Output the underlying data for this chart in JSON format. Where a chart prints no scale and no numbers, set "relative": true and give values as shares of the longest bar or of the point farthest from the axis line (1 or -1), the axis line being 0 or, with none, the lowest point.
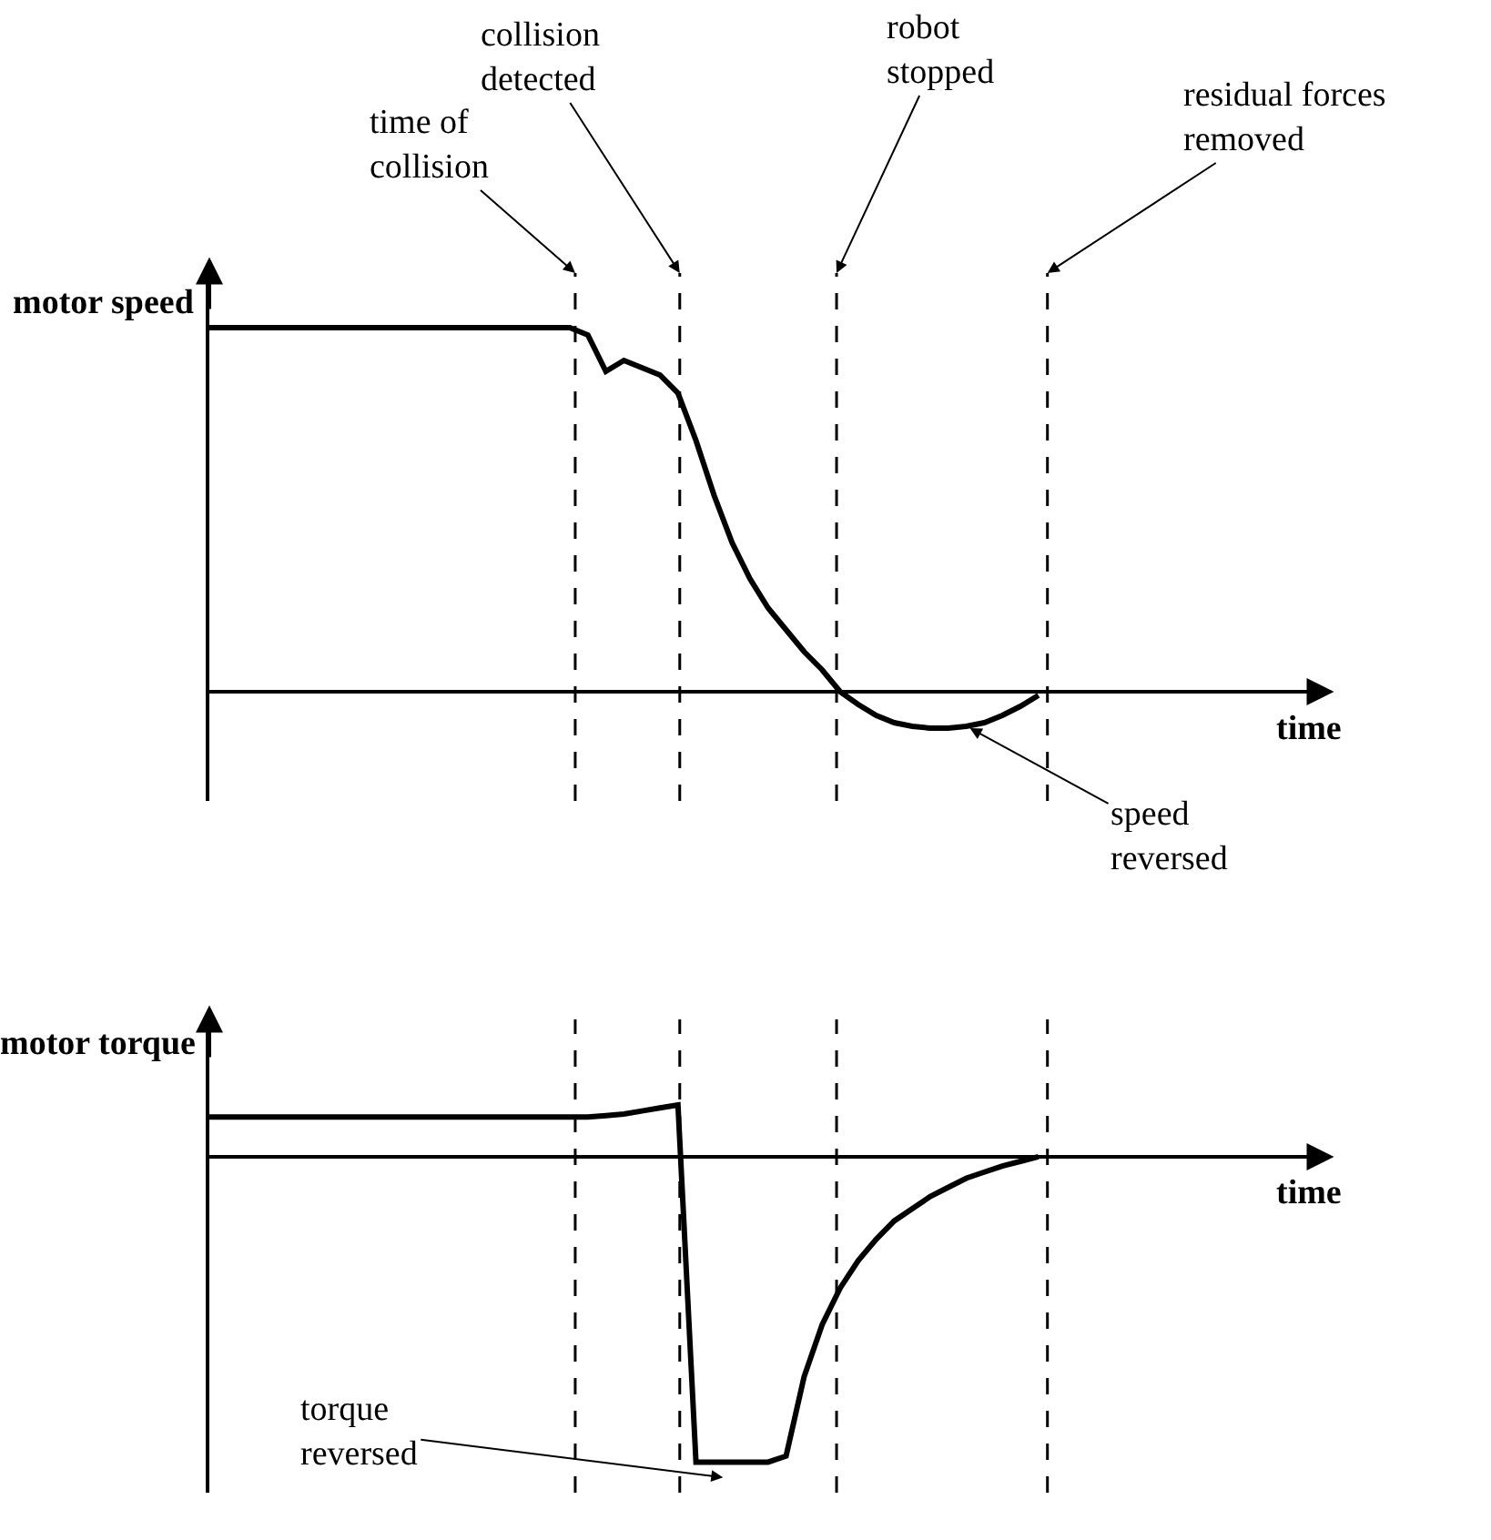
{
  "chart_data": [
    {
      "type": "line",
      "relative": true,
      "ylabel": "motor speed",
      "xlabel": "time",
      "line_style": "solid",
      "categories": [
        null,
        null,
        null,
        null,
        null,
        null,
        null,
        null,
        null,
        null,
        null,
        null,
        null,
        null,
        null,
        null,
        null,
        null,
        null,
        null,
        null,
        null,
        null,
        null,
        null,
        null,
        null,
        null,
        null,
        null,
        null,
        null,
        null,
        null,
        null,
        null,
        null,
        null,
        null,
        null,
        null,
        null,
        null,
        null,
        null,
        null,
        null,
        null,
        null,
        null,
        null,
        null,
        null,
        null,
        null,
        null,
        null,
        null,
        null,
        null,
        null
      ],
      "series": [
        {
          "color": "#000000",
          "values": [
            1,
            1,
            1,
            1,
            1,
            1,
            1,
            1,
            1,
            1,
            1,
            1,
            1,
            1,
            1,
            1,
            1,
            1,
            1,
            1,
            1,
            0.98,
            0.88,
            0.91,
            0.89,
            0.87,
            0.82,
            0.69,
            0.54,
            0.41,
            0.31,
            0.23,
            0.17,
            0.11,
            0.06,
            0,
            -0.035,
            -0.065,
            -0.085,
            -0.095,
            -0.1,
            -0.1,
            -0.095,
            -0.085,
            -0.065,
            -0.04,
            -0.01,
            null,
            null,
            null,
            null,
            null,
            null,
            null,
            null,
            null,
            null,
            null,
            null,
            null,
            null
          ]
        }
      ],
      "annotations": [
        "time of collision",
        "collision detected",
        "robot stopped",
        "residual forces removed",
        "speed reversed"
      ]
    },
    {
      "type": "line",
      "relative": true,
      "ylabel": "motor torque",
      "xlabel": "time",
      "line_style": "solid",
      "categories": [
        null,
        null,
        null,
        null,
        null,
        null,
        null,
        null,
        null,
        null,
        null,
        null,
        null,
        null,
        null,
        null,
        null,
        null,
        null,
        null,
        null,
        null,
        null,
        null,
        null,
        null,
        null,
        null,
        null,
        null,
        null,
        null,
        null,
        null,
        null,
        null,
        null,
        null,
        null,
        null,
        null,
        null,
        null,
        null,
        null,
        null,
        null,
        null,
        null,
        null,
        null,
        null,
        null,
        null,
        null,
        null,
        null,
        null,
        null,
        null,
        null
      ],
      "series": [
        {
          "color": "#000000",
          "values": [
            0.13,
            0.13,
            0.13,
            0.13,
            0.13,
            0.13,
            0.13,
            0.13,
            0.13,
            0.13,
            0.13,
            0.13,
            0.13,
            0.13,
            0.13,
            0.13,
            0.13,
            0.13,
            0.13,
            0.13,
            0.13,
            0.13,
            0.135,
            0.14,
            0.15,
            0.16,
            0.17,
            -1,
            -1,
            -1,
            -1,
            -1,
            -0.98,
            -0.72,
            -0.55,
            -0.43,
            -0.34,
            -0.27,
            -0.21,
            -0.17,
            -0.13,
            -0.1,
            -0.07,
            -0.05,
            -0.03,
            -0.015,
            0,
            null,
            null,
            null,
            null,
            null,
            null,
            null,
            null,
            null,
            null,
            null,
            null,
            null,
            null
          ]
        }
      ],
      "annotations": [
        "torque reversed"
      ]
    }
  ]
}
